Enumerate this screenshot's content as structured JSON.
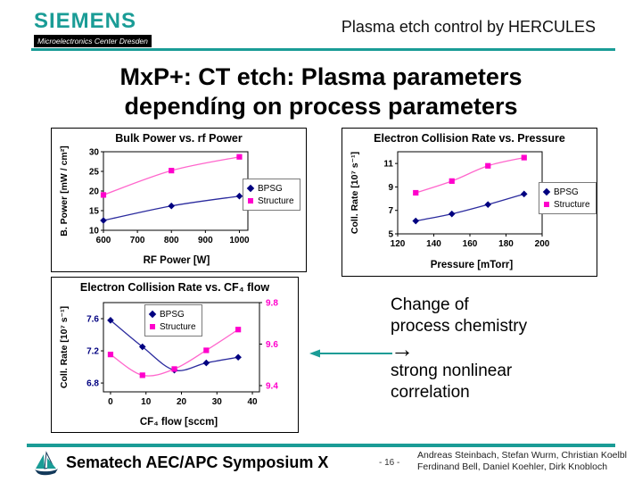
{
  "header": {
    "brand": "SIEMENS",
    "brand_sub": "Microelectronics Center Dresden",
    "project": "Plasma etch control by HERCULES"
  },
  "title": {
    "line1": "MxP+: CT etch: Plasma parameters",
    "line2": "dependíng on process parameters"
  },
  "note": {
    "line1": "Change of",
    "line2": "process chemistry",
    "arrow_icon": "→",
    "line3": "strong nonlinear",
    "line4": "correlation"
  },
  "footer": {
    "conference": "Sematech AEC/APC Symposium X",
    "page": "- 16 -",
    "authors_line1": "Andreas Steinbach, Stefan Wurm, Christian Koelbl",
    "authors_line2": "Ferdinand Bell, Daniel Koehler, Dirk Knobloch"
  },
  "colors": {
    "teal": "#1a9c96",
    "navy": "#000080",
    "magenta": "#ff00cc",
    "magenta_line": "#ff66cc",
    "ship_dark": "#12395a"
  },
  "chart_data": [
    {
      "type": "line",
      "title": "Bulk Power vs. rf Power",
      "xlabel": "RF Power [W]",
      "ylabel": "B. Power [mW / cm²]",
      "xlim": [
        600,
        1025
      ],
      "xticks": [
        600,
        700,
        800,
        900,
        1000
      ],
      "ylim": [
        10,
        30
      ],
      "yticks": [
        10,
        15,
        20,
        25,
        30
      ],
      "grid": false,
      "legend_position": "right-outside",
      "series": [
        {
          "name": "BPSG",
          "marker": "diamond",
          "color": "#000080",
          "line_color": "#2b2b9e",
          "x": [
            600,
            800,
            1000
          ],
          "y": [
            12.5,
            16.2,
            18.7
          ]
        },
        {
          "name": "Structure",
          "marker": "square",
          "color": "#ff00cc",
          "line_color": "#ff66cc",
          "x": [
            600,
            800,
            1000
          ],
          "y": [
            19.0,
            25.2,
            28.7
          ]
        }
      ]
    },
    {
      "type": "line",
      "title": "Electron Collision Rate vs. Pressure",
      "xlabel": "Pressure [mTorr]",
      "ylabel": "Coll. Rate [10⁷ s⁻¹]",
      "xlim": [
        120,
        200
      ],
      "xticks": [
        120,
        140,
        160,
        180,
        200
      ],
      "ylim": [
        5,
        12
      ],
      "yticks": [
        5,
        7,
        9,
        11
      ],
      "grid": false,
      "legend_position": "right-outside",
      "series": [
        {
          "name": "BPSG",
          "marker": "diamond",
          "color": "#000080",
          "line_color": "#2b2b9e",
          "x": [
            130,
            150,
            170,
            190
          ],
          "y": [
            6.1,
            6.7,
            7.5,
            8.4
          ]
        },
        {
          "name": "Structure",
          "marker": "square",
          "color": "#ff00cc",
          "line_color": "#ff66cc",
          "x": [
            130,
            150,
            170,
            190
          ],
          "y": [
            8.5,
            9.5,
            10.8,
            11.5
          ]
        }
      ]
    },
    {
      "type": "line",
      "title": "Electron Collision Rate vs. CF₄ flow",
      "xlabel": "CF₄ flow [sccm]",
      "ylabel": "Coll. Rate [10⁷ s⁻¹]",
      "xlim": [
        -2,
        42
      ],
      "xticks": [
        0,
        10,
        20,
        30,
        40
      ],
      "ylim": [
        6.69,
        7.8
      ],
      "yticks": [
        6.8,
        7.2,
        7.6
      ],
      "y2lim": [
        9.37,
        9.8
      ],
      "y2ticks": [
        9.4,
        9.6,
        9.8
      ],
      "ytick_color": "#000080",
      "y2tick_color": "#ff00cc",
      "grid": false,
      "legend_position": "inside-top",
      "series": [
        {
          "name": "BPSG",
          "marker": "diamond",
          "color": "#000080",
          "line_color": "#2b2b9e",
          "x": [
            0,
            9,
            18,
            27,
            36
          ],
          "y": [
            7.58,
            7.25,
            6.96,
            7.05,
            7.12
          ]
        },
        {
          "name": "Structure",
          "marker": "square",
          "color": "#ff00cc",
          "line_color": "#ff66cc",
          "axis": "right",
          "x": [
            0,
            9,
            18,
            27,
            36
          ],
          "y": [
            9.55,
            9.45,
            9.48,
            9.57,
            9.67
          ]
        }
      ]
    }
  ]
}
